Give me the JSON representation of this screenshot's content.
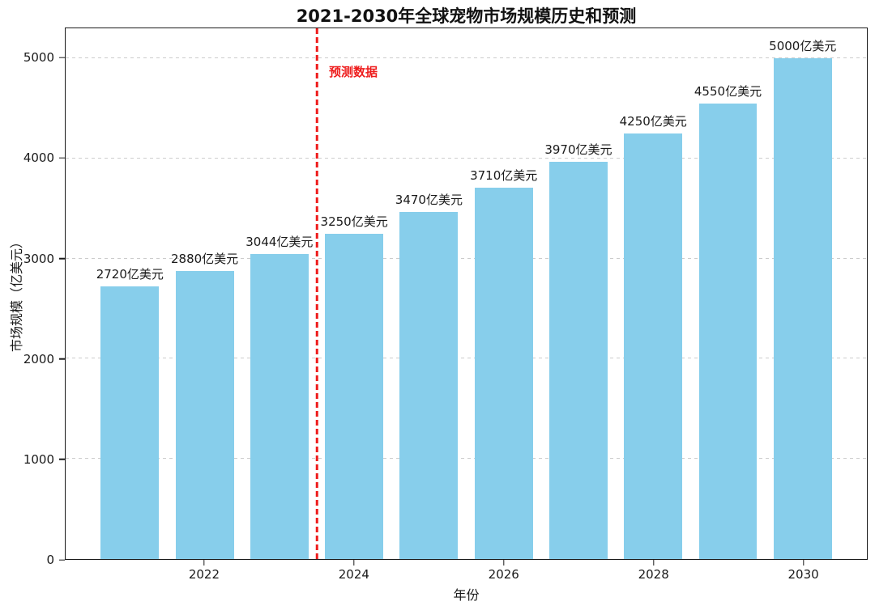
{
  "chart_data": {
    "type": "bar",
    "title": "2021-2030年全球宠物市场规模历史和预测",
    "xlabel": "年份",
    "ylabel": "市场规模（亿美元）",
    "unit": "亿美元",
    "categories": [
      2021,
      2022,
      2023,
      2024,
      2025,
      2026,
      2027,
      2028,
      2029,
      2030
    ],
    "values": [
      2720,
      2880,
      3044,
      3250,
      3470,
      3710,
      3970,
      4250,
      4550,
      5000
    ],
    "bar_labels": [
      "2720亿美元",
      "2880亿美元",
      "3044亿美元",
      "3250亿美元",
      "3470亿美元",
      "3710亿美元",
      "3970亿美元",
      "4250亿美元",
      "4550亿美元",
      "5000亿美元"
    ],
    "yticks": [
      0,
      1000,
      2000,
      3000,
      4000,
      5000
    ],
    "xtick_years": [
      2022,
      2024,
      2026,
      2028,
      2030
    ],
    "ylim": [
      0,
      5300
    ],
    "grid": "horizontal-dashed",
    "legend": "none",
    "bar_color": "#87ceeb",
    "forecast": {
      "divider_after_year": 2023,
      "divider_x": 2023.5,
      "label": "预测数据",
      "color": "#ee1c1c",
      "line_style": "dashed"
    }
  },
  "colors": {
    "grid": "#cccccc",
    "axis": "#1a1a1a",
    "background": "#ffffff"
  }
}
